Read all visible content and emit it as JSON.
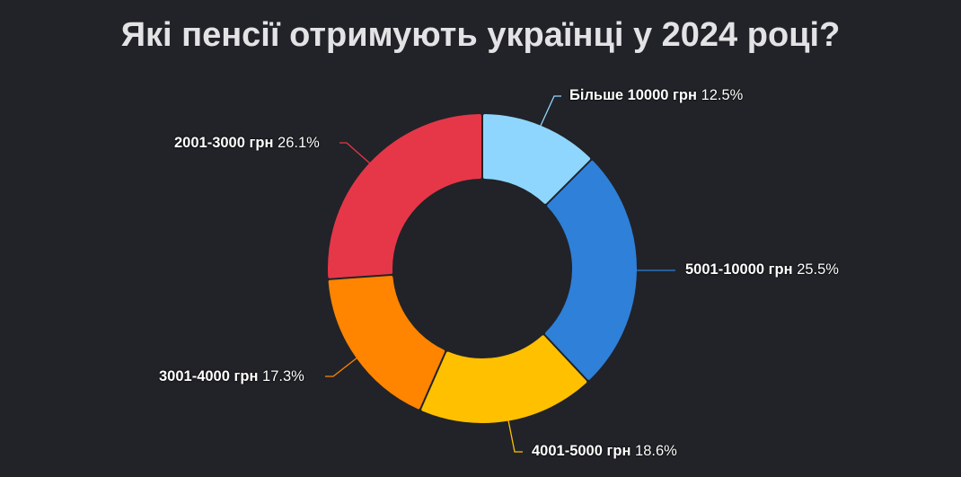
{
  "title": "Які пенсії отримують українці у 2024 році?",
  "chart_data": {
    "type": "pie",
    "variant": "donut",
    "title": "Які пенсії отримують українці у 2024 році?",
    "start_angle_deg": 0,
    "direction": "clockwise",
    "categories": [
      "Більше 10000 грн",
      "5001-10000 грн",
      "4001-5000 грн",
      "3001-4000 грн",
      "2001-3000 грн"
    ],
    "values": [
      12.5,
      25.5,
      18.6,
      17.3,
      26.1
    ],
    "unit": "%",
    "colors": [
      "#8fd6ff",
      "#2e80d9",
      "#ffc000",
      "#ff8400",
      "#e63748"
    ],
    "legend": "none (inline leader-line labels)"
  },
  "labels": [
    {
      "category": "Більше 10000 грн",
      "percent": "12.5%"
    },
    {
      "category": "5001-10000 грн",
      "percent": "25.5%"
    },
    {
      "category": "4001-5000 грн",
      "percent": "18.6%"
    },
    {
      "category": "3001-4000 грн",
      "percent": "17.3%"
    },
    {
      "category": "2001-3000 грн",
      "percent": "26.1%"
    }
  ],
  "colors": {
    "background": "#212328",
    "title": "#e3e3e5",
    "label_text": "#ffffff"
  }
}
